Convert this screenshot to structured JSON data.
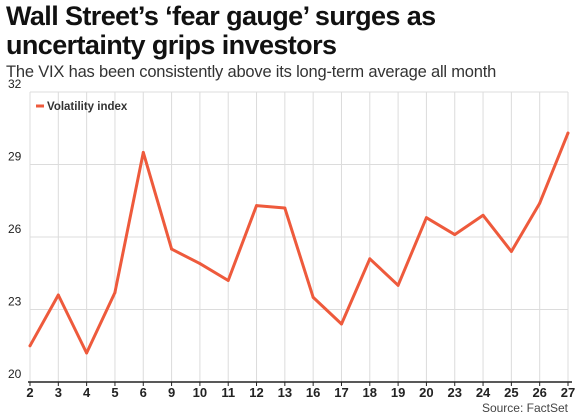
{
  "title": "Wall Street’s ‘fear gauge’ surges as uncertainty grips investors",
  "subtitle": "The VIX has been consistently above its long-term average all month",
  "source": "Source: FactSet",
  "colors": {
    "line": "#ee5a3c",
    "grid": "#dcdcdc",
    "axis": "#222222"
  },
  "chart_data": {
    "type": "line",
    "categories": [
      "2",
      "3",
      "4",
      "5",
      "6",
      "9",
      "10",
      "11",
      "12",
      "13",
      "16",
      "17",
      "18",
      "19",
      "20",
      "23",
      "24",
      "25",
      "26",
      "27"
    ],
    "series": [
      {
        "name": "Volatility index",
        "values": [
          21.5,
          23.6,
          21.2,
          23.7,
          29.5,
          25.5,
          24.9,
          24.2,
          27.3,
          27.2,
          23.5,
          22.4,
          25.1,
          24.0,
          26.8,
          26.1,
          26.9,
          25.4,
          27.4,
          30.3
        ]
      }
    ],
    "yticks": [
      20,
      23,
      26,
      29,
      32
    ],
    "ylim": [
      20,
      32
    ],
    "grid": true,
    "legend_position": "top-left"
  }
}
